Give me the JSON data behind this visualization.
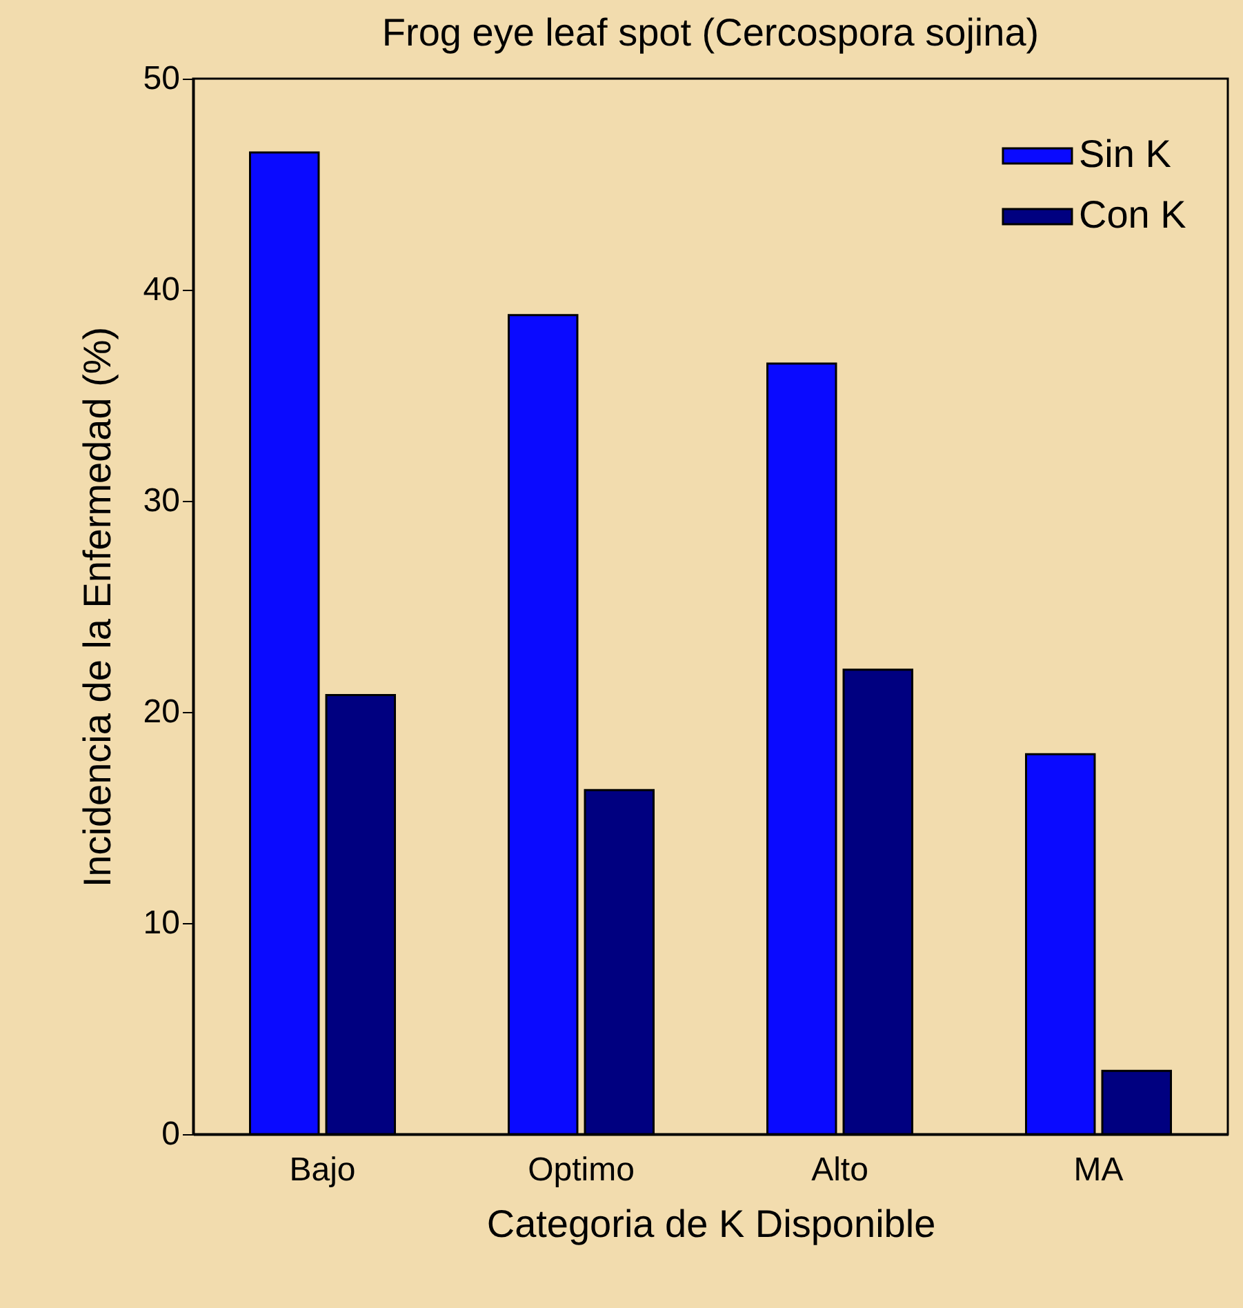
{
  "chart_data": {
    "type": "bar",
    "title": "Frog eye leaf spot (Cercospora sojina)",
    "xlabel": "Categoria de K Disponible",
    "ylabel": "Incidencia de la Enfermedad (%)",
    "categories": [
      "Bajo",
      "Optimo",
      "Alto",
      "MA"
    ],
    "series": [
      {
        "name": "Sin K",
        "color": "#0a0aff",
        "values": [
          46.5,
          38.8,
          36.5,
          18.0
        ]
      },
      {
        "name": "Con K",
        "color": "#000080",
        "values": [
          20.8,
          16.3,
          22.0,
          3.0
        ]
      }
    ],
    "ylim": [
      0,
      50
    ],
    "yticks": [
      0,
      10,
      20,
      30,
      40,
      50
    ],
    "grid": false,
    "legend": "top right"
  }
}
